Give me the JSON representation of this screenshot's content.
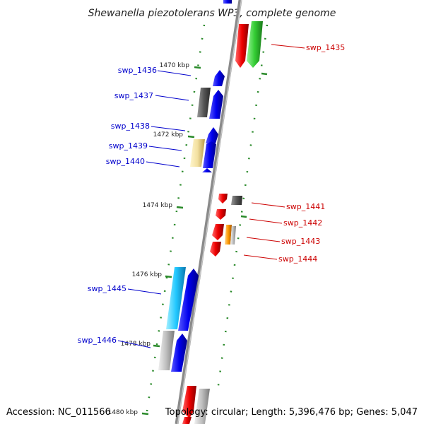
{
  "title": "Shewanella piezotolerans WP3, complete genome",
  "footer": {
    "accession": "Accession: NC_011566",
    "summary": "Topology: circular; Length: 5,396,476 bp; Genes: 5,047"
  },
  "kbp_labels": [
    "1470 kbp",
    "1472 kbp",
    "1474 kbp",
    "1476 kbp",
    "1478 kbp",
    "1480 kbp"
  ],
  "genes_left": [
    "swp_1436",
    "swp_1437",
    "swp_1438",
    "swp_1439",
    "swp_1440",
    "swp_1445",
    "swp_1446"
  ],
  "genes_right": [
    "swp_1435",
    "swp_1441",
    "swp_1442",
    "swp_1443",
    "swp_1444"
  ],
  "colors": {
    "left_label": "#0000cc",
    "right_label": "#cc0000",
    "tick": "#2a8a2a",
    "backbone": "#808080"
  }
}
